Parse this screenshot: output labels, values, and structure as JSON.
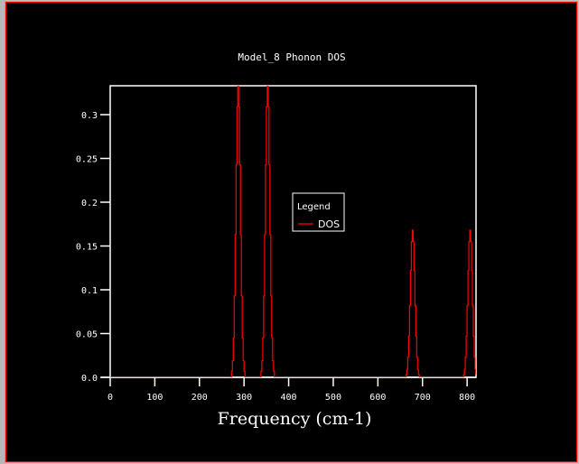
{
  "chart_data": {
    "type": "line",
    "title": "Model_8 Phonon DOS",
    "xlabel": "Frequency (cm-1)",
    "ylabel": "",
    "xlim": [
      0,
      820
    ],
    "ylim": [
      0,
      0.333
    ],
    "x_ticks": [
      0,
      100,
      200,
      300,
      400,
      500,
      600,
      700,
      800
    ],
    "y_ticks": [
      0.0,
      0.05,
      0.1,
      0.15,
      0.2,
      0.25,
      0.3
    ],
    "y_tick_labels": [
      "0.0",
      "0.05",
      "0.1",
      "0.15",
      "0.2",
      "0.25",
      "0.3"
    ],
    "grid": false,
    "legend": {
      "title": "Legend",
      "placement": "center",
      "entries": [
        "DOS"
      ]
    },
    "series": [
      {
        "name": "DOS",
        "color": "#ff0000",
        "x": [
          0,
          270,
          272,
          274,
          276,
          278,
          280,
          282,
          284,
          286,
          288,
          290,
          292,
          294,
          296,
          298,
          300,
          302,
          336,
          338,
          340,
          342,
          344,
          346,
          348,
          350,
          352,
          354,
          356,
          358,
          360,
          362,
          364,
          366,
          368,
          661,
          663,
          665,
          667,
          669,
          671,
          673,
          675,
          677,
          679,
          681,
          683,
          685,
          687,
          689,
          691,
          693,
          790,
          792,
          794,
          796,
          798,
          800,
          802,
          804,
          806,
          808,
          810,
          812,
          814,
          816,
          818,
          820
        ],
        "y": [
          0,
          0,
          0.007,
          0.019,
          0.045,
          0.093,
          0.163,
          0.243,
          0.309,
          0.335,
          0.309,
          0.243,
          0.163,
          0.093,
          0.045,
          0.019,
          0.007,
          0,
          0,
          0.007,
          0.019,
          0.045,
          0.093,
          0.163,
          0.243,
          0.309,
          0.335,
          0.309,
          0.243,
          0.163,
          0.093,
          0.045,
          0.019,
          0.007,
          0,
          0,
          0.003,
          0.009,
          0.023,
          0.047,
          0.082,
          0.122,
          0.155,
          0.168,
          0.155,
          0.122,
          0.082,
          0.047,
          0.023,
          0.009,
          0.003,
          0,
          0,
          0.003,
          0.009,
          0.023,
          0.047,
          0.082,
          0.122,
          0.155,
          0.168,
          0.155,
          0.122,
          0.082,
          0.047,
          0.023,
          0.009,
          0.003
        ]
      }
    ]
  }
}
